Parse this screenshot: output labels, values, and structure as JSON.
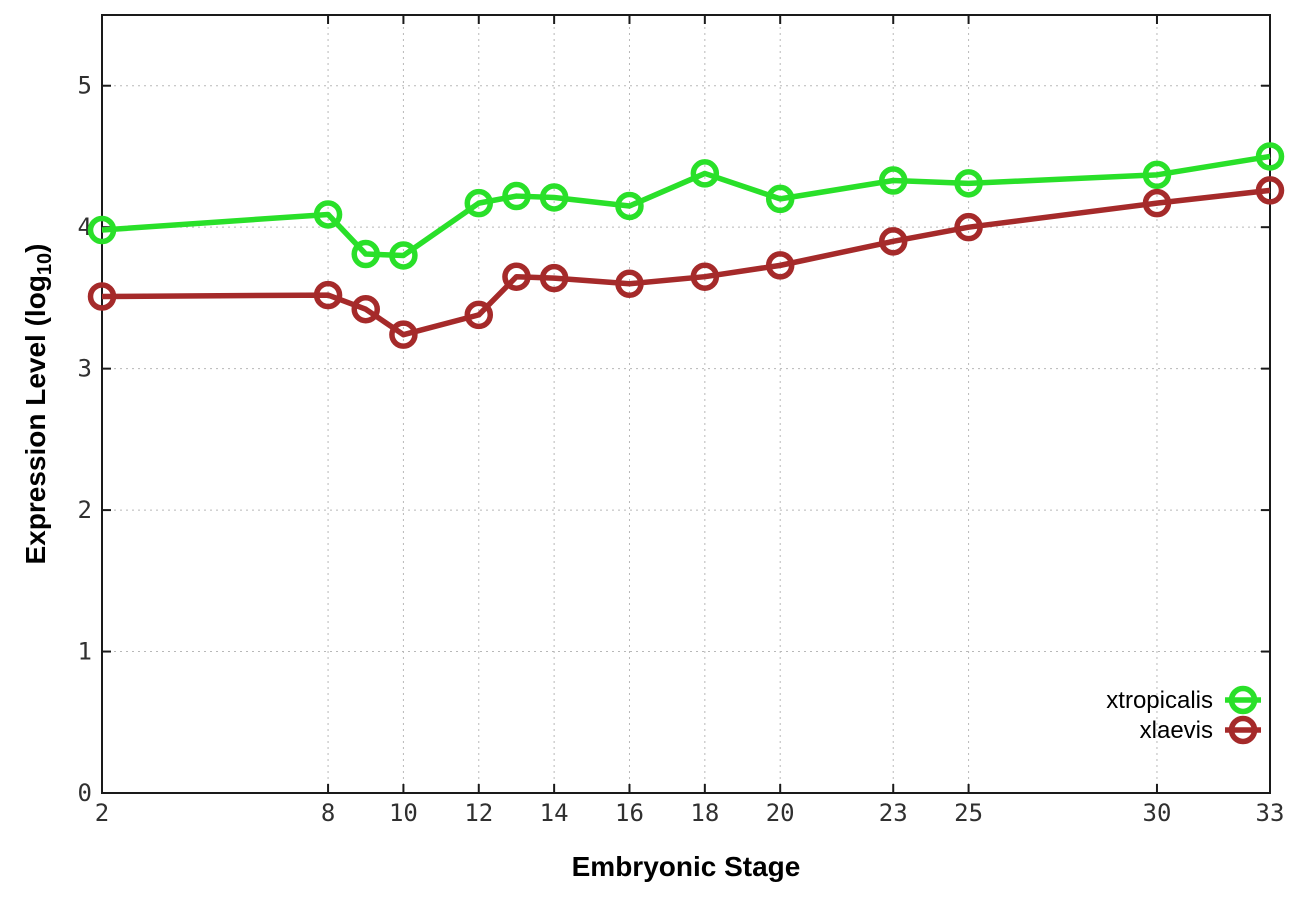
{
  "chart_data": {
    "type": "line",
    "title": "",
    "xlabel": "Embryonic Stage",
    "ylabel": "Expression Level (log10)",
    "ylabel_rich": {
      "pre": "Expression Level (log",
      "sub": "10",
      "post": ")"
    },
    "x": [
      2,
      8,
      9,
      10,
      12,
      13,
      14,
      16,
      18,
      20,
      23,
      25,
      30,
      33
    ],
    "series": [
      {
        "name": "xtropicalis",
        "color": "#29e029",
        "values": [
          3.98,
          4.09,
          3.81,
          3.8,
          4.17,
          4.22,
          4.21,
          4.15,
          4.38,
          4.2,
          4.33,
          4.31,
          4.37,
          4.5
        ]
      },
      {
        "name": "xlaevis",
        "color": "#a52a2a",
        "values": [
          3.51,
          3.52,
          3.42,
          3.24,
          3.38,
          3.65,
          3.64,
          3.6,
          3.65,
          3.73,
          3.9,
          4.0,
          4.17,
          4.26
        ]
      }
    ],
    "xticks": [
      2,
      8,
      10,
      12,
      14,
      16,
      18,
      20,
      23,
      25,
      30,
      33
    ],
    "yticks": [
      0,
      1,
      2,
      3,
      4,
      5
    ],
    "xlim": [
      2,
      33
    ],
    "ylim": [
      0,
      5.5
    ],
    "grid": true,
    "marker": "open-circle",
    "legend": {
      "position": "inside-bottom-right",
      "entries": [
        "xtropicalis",
        "xlaevis"
      ]
    },
    "colors": {
      "background": "#ffffff",
      "border": "#1a1a1a",
      "grid": "#b8b8b8",
      "tick_label": "#303030"
    }
  }
}
